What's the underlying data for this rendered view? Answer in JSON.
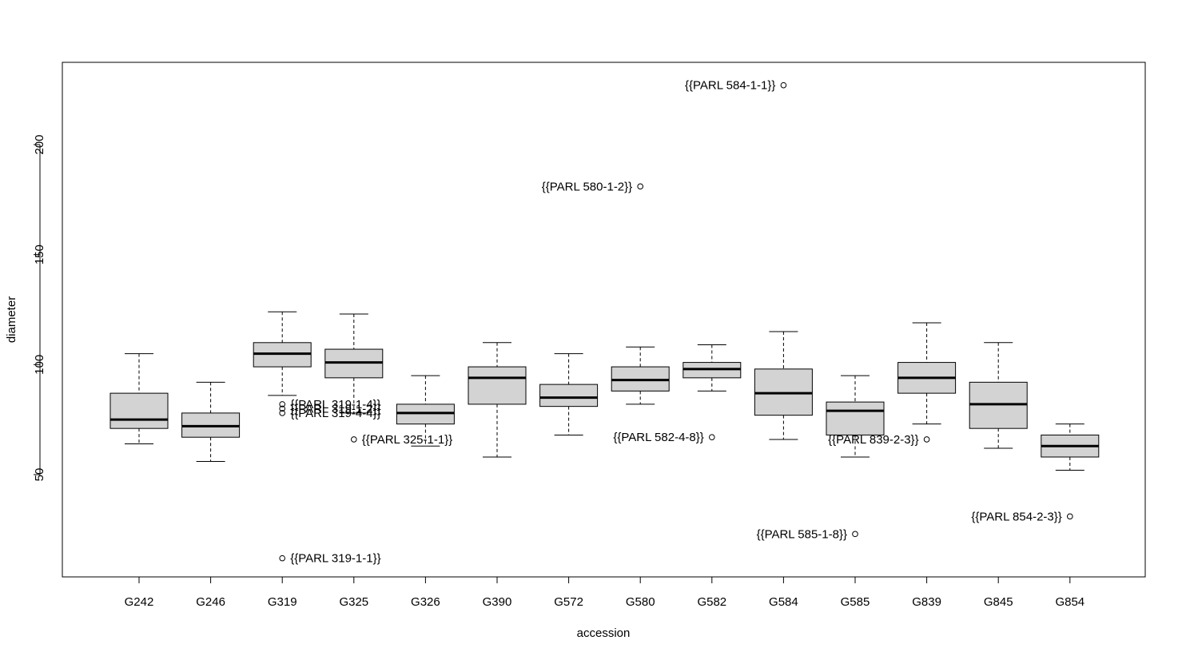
{
  "chart_data": {
    "type": "boxplot",
    "title": "",
    "xlabel": "accession",
    "ylabel": "diameter",
    "ylim": [
      0,
      233
    ],
    "yticks": [
      50,
      100,
      150,
      200
    ],
    "grid": false,
    "legend": "none",
    "box_fill": "#d3d3d3",
    "categories": [
      "G242",
      "G246",
      "G319",
      "G325",
      "G326",
      "G390",
      "G572",
      "G580",
      "G582",
      "G584",
      "G585",
      "G839",
      "G845",
      "G854"
    ],
    "boxes": [
      {
        "category": "G242",
        "lower_whisker": 64,
        "q1": 71,
        "median": 75,
        "q3": 87,
        "upper_whisker": 105,
        "outliers": []
      },
      {
        "category": "G246",
        "lower_whisker": 56,
        "q1": 67,
        "median": 72,
        "q3": 78,
        "upper_whisker": 92,
        "outliers": []
      },
      {
        "category": "G319",
        "lower_whisker": 86,
        "q1": 99,
        "median": 105,
        "q3": 110,
        "upper_whisker": 124,
        "outliers": [
          {
            "value": 82,
            "label": "{{PARL 319-1-4}}",
            "side": "right"
          },
          {
            "value": 80,
            "label": "{{PARL 319-1-2}}",
            "side": "right"
          },
          {
            "value": 78,
            "label": "{{PARL 319-4-4}}",
            "side": "right"
          },
          {
            "value": 12,
            "label": "{{PARL 319-1-1}}",
            "side": "right"
          }
        ]
      },
      {
        "category": "G325",
        "lower_whisker": 78,
        "q1": 94,
        "median": 101,
        "q3": 107,
        "upper_whisker": 123,
        "outliers": [
          {
            "value": 66,
            "label": "{{PARL 325-1-1}}",
            "side": "right"
          }
        ]
      },
      {
        "category": "G326",
        "lower_whisker": 63,
        "q1": 73,
        "median": 78,
        "q3": 82,
        "upper_whisker": 95,
        "outliers": []
      },
      {
        "category": "G390",
        "lower_whisker": 58,
        "q1": 82,
        "median": 94,
        "q3": 99,
        "upper_whisker": 110,
        "outliers": []
      },
      {
        "category": "G572",
        "lower_whisker": 68,
        "q1": 81,
        "median": 85,
        "q3": 91,
        "upper_whisker": 105,
        "outliers": []
      },
      {
        "category": "G580",
        "lower_whisker": 82,
        "q1": 88,
        "median": 93,
        "q3": 99,
        "upper_whisker": 108,
        "outliers": [
          {
            "value": 181,
            "label": "{{PARL 580-1-2}}",
            "side": "left"
          }
        ]
      },
      {
        "category": "G582",
        "lower_whisker": 88,
        "q1": 94,
        "median": 98,
        "q3": 101,
        "upper_whisker": 109,
        "outliers": [
          {
            "value": 67,
            "label": "{{PARL 582-4-8}}",
            "side": "left"
          }
        ]
      },
      {
        "category": "G584",
        "lower_whisker": 66,
        "q1": 77,
        "median": 87,
        "q3": 98,
        "upper_whisker": 115,
        "outliers": [
          {
            "value": 227,
            "label": "{{PARL 584-1-1}}",
            "side": "left"
          }
        ]
      },
      {
        "category": "G585",
        "lower_whisker": 58,
        "q1": 68,
        "median": 79,
        "q3": 83,
        "upper_whisker": 95,
        "outliers": [
          {
            "value": 23,
            "label": "{{PARL 585-1-8}}",
            "side": "left"
          }
        ]
      },
      {
        "category": "G839",
        "lower_whisker": 73,
        "q1": 87,
        "median": 94,
        "q3": 101,
        "upper_whisker": 119,
        "outliers": [
          {
            "value": 66,
            "label": "{{PARL 839-2-3}}",
            "side": "left"
          }
        ]
      },
      {
        "category": "G845",
        "lower_whisker": 62,
        "q1": 71,
        "median": 82,
        "q3": 92,
        "upper_whisker": 110,
        "outliers": []
      },
      {
        "category": "G854",
        "lower_whisker": 52,
        "q1": 58,
        "median": 63,
        "q3": 68,
        "upper_whisker": 73,
        "outliers": [
          {
            "value": 31,
            "label": "{{PARL 854-2-3}}",
            "side": "left"
          }
        ]
      }
    ]
  }
}
